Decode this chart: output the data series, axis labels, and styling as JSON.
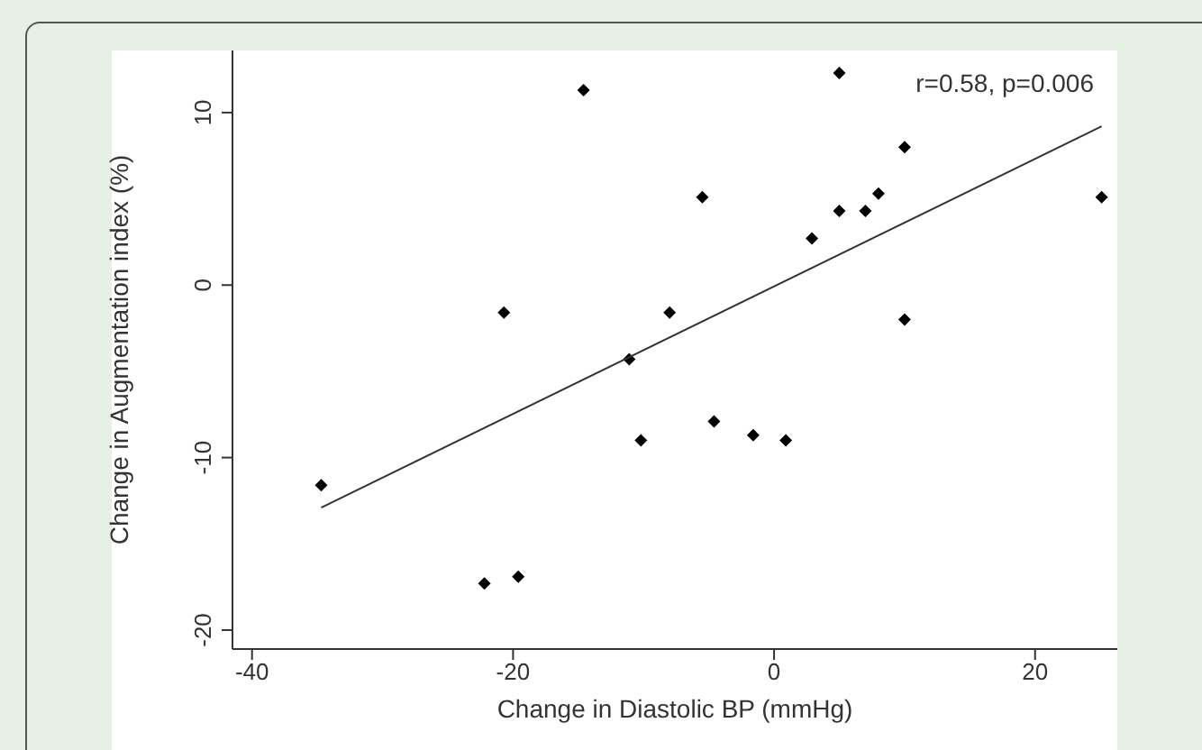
{
  "chart_data": {
    "type": "scatter",
    "xlabel": "Change in Diastolic BP  (mmHg)",
    "ylabel": "Change in Augmentation index (%)",
    "annotations": [
      "r=0.58, p=0.006"
    ],
    "xlim": [
      -41.5,
      26.3
    ],
    "xticks": [
      -40,
      -20,
      0,
      20
    ],
    "ylim": [
      -21.1,
      13.6
    ],
    "yticks": [
      -20,
      -10,
      0,
      10
    ],
    "grid": false,
    "legend": false,
    "series": [
      {
        "marker": "diamond",
        "color": "#000000",
        "x": [
          -34.7,
          -14.6,
          -5.5,
          -20.7,
          -8.0,
          -11.1,
          -10.2,
          -4.6,
          -22.2,
          -19.6,
          5.0,
          10.0,
          8.0,
          5.0,
          7.0,
          2.9,
          25.1,
          10.0,
          -1.6,
          0.9
        ],
        "values": [
          -11.6,
          11.3,
          5.1,
          -1.6,
          -1.6,
          -4.3,
          -9.0,
          -7.9,
          -17.3,
          -16.9,
          12.3,
          8.0,
          5.3,
          4.3,
          4.3,
          2.7,
          5.1,
          -2.0,
          -8.7,
          -9.0
        ]
      },
      {
        "type": "line",
        "color": "#333333",
        "x": [
          -34.7,
          25.1
        ],
        "values": [
          -12.9,
          9.2
        ],
        "line_style": "solid",
        "marker": "none"
      }
    ]
  }
}
